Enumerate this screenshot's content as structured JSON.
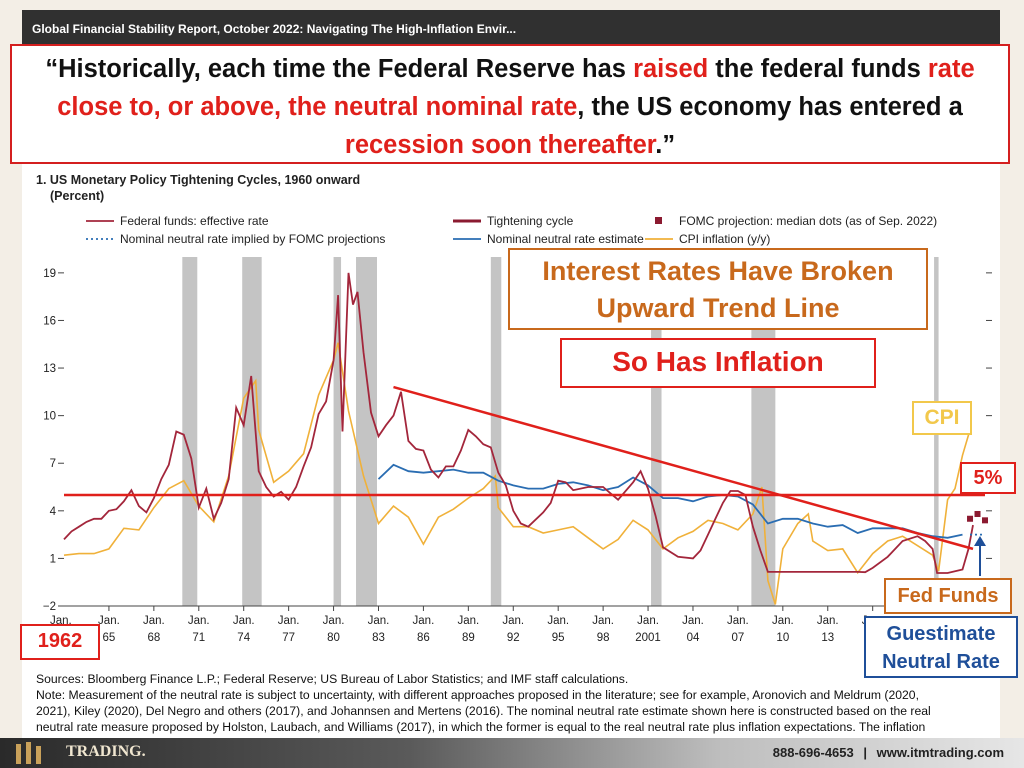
{
  "window_title": "Global Financial Stability Report, October 2022: Navigating The High-Inflation Envir...",
  "quote": {
    "p1": "“Historically, each time the Federal Reserve has ",
    "h1": "raised",
    "p2": " the federal funds ",
    "h2": "rate close to, or above, the neutral nominal rate",
    "p3": ", the US economy has entered a ",
    "h3": "recession soon thereafter",
    "p4": ".”"
  },
  "callouts": {
    "trend": "Interest Rates Have Broken Upward Trend Line",
    "inflation": "So Has Inflation",
    "cpi": "CPI",
    "five_pct": "5%",
    "fed_funds": "Fed Funds",
    "guestimate": "Guestimate Neutral Rate",
    "year_1962": "1962"
  },
  "notes": {
    "line1": "Sources: Bloomberg Finance L.P.; Federal Reserve; US Bureau of Labor Statistics; and IMF staff calculations.",
    "line2": "Note: Measurement of the neutral rate is subject to uncertainty, with different approaches proposed in the literature; see for example, Aronovich and Meldrum (2020,",
    "line3": "2021), Kiley (2020), Del Negro and others (2017), and Johannsen and Mertens (2016). The nominal neutral rate estimate shown here is constructed based on the real",
    "line4": "neutral rate measure proposed by Holston, Laubach, and Williams (2017), in which the former is equal to the real neutral rate plus inflation expectations. The inflation"
  },
  "footer": {
    "phone": "888-696-4653",
    "sep": "|",
    "website": "www.itmtrading.com",
    "logo_text": "TRADING."
  },
  "colors": {
    "fed_funds": "#a3263b",
    "tightening": "#8b1a30",
    "neutral_est": "#2a6db2",
    "neutral_fomc": "#2a6db2",
    "cpi": "#f0b13a",
    "fomc_dots": "#8b1a30",
    "recession": "#c4c4c4",
    "annotation_red": "#e0201b",
    "annotation_orange": "#c8691c",
    "annotation_blue": "#1f4f99",
    "annotation_yellow": "#f2c84b"
  },
  "chart_data": {
    "type": "line",
    "title": "1. US Monetary Policy Tightening Cycles, 1960 onward",
    "subtitle": "(Percent)",
    "ylim": [
      -2,
      20
    ],
    "yticks": [
      -2,
      1,
      4,
      7,
      10,
      13,
      16,
      19
    ],
    "xlim": [
      1962,
      2023.5
    ],
    "xticks": [
      {
        "top": "Jan.",
        "bottom": "65"
      },
      {
        "top": "Jan.",
        "bottom": "68"
      },
      {
        "top": "Jan.",
        "bottom": "71"
      },
      {
        "top": "Jan.",
        "bottom": "74"
      },
      {
        "top": "Jan.",
        "bottom": "77"
      },
      {
        "top": "Jan.",
        "bottom": "80"
      },
      {
        "top": "Jan.",
        "bottom": "83"
      },
      {
        "top": "Jan.",
        "bottom": "86"
      },
      {
        "top": "Jan.",
        "bottom": "89"
      },
      {
        "top": "Jan.",
        "bottom": "92"
      },
      {
        "top": "Jan.",
        "bottom": "95"
      },
      {
        "top": "Jan.",
        "bottom": "98"
      },
      {
        "top": "Jan.",
        "bottom": "2001"
      },
      {
        "top": "Jan.",
        "bottom": "04"
      },
      {
        "top": "Jan.",
        "bottom": "07"
      },
      {
        "top": "Jan.",
        "bottom": "10"
      },
      {
        "top": "Jan.",
        "bottom": "13"
      },
      {
        "top": "Jan.",
        "bottom": "16"
      }
    ],
    "xtick_years": [
      1965,
      1968,
      1971,
      1974,
      1977,
      1980,
      1983,
      1986,
      1989,
      1992,
      1995,
      1998,
      2001,
      2004,
      2007,
      2010,
      2013,
      2016
    ],
    "first_tick_label": "Jan.",
    "legend": [
      {
        "name": "Federal funds: effective rate",
        "style": "line",
        "color": "#a3263b"
      },
      {
        "name": "Tightening cycle",
        "style": "thick",
        "color": "#8b1a30"
      },
      {
        "name": "FOMC projection: median dots (as of Sep. 2022)",
        "style": "square",
        "color": "#8b1a30"
      },
      {
        "name": "Nominal neutral rate implied by FOMC projections",
        "style": "dotted",
        "color": "#2a6db2"
      },
      {
        "name": "Nominal neutral rate estimate",
        "style": "line",
        "color": "#2a6db2"
      },
      {
        "name": "CPI inflation (y/y)",
        "style": "line",
        "color": "#f0b13a"
      }
    ],
    "recessions": [
      [
        1969.9,
        1970.9
      ],
      [
        1973.9,
        1975.2
      ],
      [
        1980.0,
        1980.5
      ],
      [
        1981.5,
        1982.9
      ],
      [
        1990.5,
        1991.2
      ],
      [
        2001.2,
        2001.9
      ],
      [
        2007.9,
        2009.5
      ],
      [
        2020.1,
        2020.4
      ]
    ],
    "series": [
      {
        "name": "Federal funds: effective rate",
        "x": [
          1962,
          1962.5,
          1963,
          1963.5,
          1964,
          1964.5,
          1965,
          1965.5,
          1966,
          1966.5,
          1967,
          1967.5,
          1968,
          1968.5,
          1969,
          1969.5,
          1970,
          1970.5,
          1971,
          1971.5,
          1972,
          1972.5,
          1973,
          1973.5,
          1974,
          1974.5,
          1975,
          1975.5,
          1976,
          1976.5,
          1977,
          1977.5,
          1978,
          1978.5,
          1979,
          1979.5,
          1980,
          1980.3,
          1980.6,
          1981,
          1981.3,
          1981.6,
          1982,
          1982.5,
          1983,
          1983.5,
          1984,
          1984.5,
          1985,
          1985.5,
          1986,
          1986.5,
          1987,
          1987.5,
          1988,
          1988.5,
          1989,
          1989.5,
          1990,
          1990.5,
          1991,
          1991.5,
          1992,
          1992.5,
          1993,
          1994,
          1994.5,
          1995,
          1995.5,
          1996,
          1997,
          1998,
          1998.5,
          1999,
          2000,
          2000.5,
          2001,
          2001.5,
          2002,
          2003,
          2004,
          2004.5,
          2005,
          2005.5,
          2006,
          2006.5,
          2007,
          2007.5,
          2008,
          2008.5,
          2009,
          2012,
          2015,
          2015.5,
          2016,
          2017,
          2018,
          2019,
          2019.5,
          2020,
          2020.3,
          2021,
          2022,
          2022.4,
          2022.7
        ],
        "y": [
          2.2,
          2.7,
          3.0,
          3.3,
          3.5,
          3.5,
          4.0,
          4.1,
          4.6,
          5.3,
          4.3,
          3.9,
          4.8,
          6.0,
          6.9,
          9.0,
          8.8,
          7.3,
          4.2,
          5.4,
          3.5,
          4.5,
          6.0,
          10.5,
          9.4,
          12.5,
          6.5,
          5.5,
          4.9,
          5.2,
          4.7,
          5.5,
          6.8,
          8.0,
          10.1,
          10.9,
          13.5,
          17.6,
          9.0,
          19.0,
          17.0,
          17.8,
          14.0,
          10.2,
          8.7,
          9.4,
          10.0,
          11.5,
          8.4,
          7.9,
          7.8,
          6.6,
          6.1,
          6.8,
          6.8,
          7.8,
          9.1,
          8.7,
          8.2,
          8.0,
          6.4,
          5.6,
          4.0,
          3.2,
          3.0,
          3.9,
          4.5,
          5.9,
          5.8,
          5.3,
          5.5,
          5.5,
          5.1,
          4.7,
          5.8,
          6.5,
          5.4,
          3.7,
          1.7,
          1.1,
          1.0,
          1.5,
          2.5,
          3.5,
          4.5,
          5.25,
          5.25,
          5.0,
          3.0,
          1.5,
          0.15,
          0.15,
          0.15,
          0.13,
          0.4,
          1.1,
          2.1,
          2.4,
          2.1,
          1.6,
          0.08,
          0.08,
          0.3,
          1.6,
          3.1
        ]
      },
      {
        "name": "CPI inflation (y/y)",
        "x": [
          1962,
          1963,
          1964,
          1965,
          1966,
          1967,
          1968,
          1969,
          1970,
          1971,
          1972,
          1973,
          1974,
          1974.8,
          1975,
          1976,
          1977,
          1978,
          1979,
          1980,
          1980.3,
          1981,
          1982,
          1983,
          1984,
          1985,
          1986,
          1987,
          1988,
          1989,
          1990,
          1990.8,
          1991,
          1992,
          1993,
          1994,
          1995,
          1996,
          1997,
          1998,
          1999,
          2000,
          2001,
          2002,
          2003,
          2004,
          2005,
          2006,
          2007,
          2008,
          2008.6,
          2009,
          2009.5,
          2010,
          2011,
          2011.7,
          2012,
          2013,
          2014,
          2015,
          2016,
          2017,
          2018,
          2019,
          2020,
          2020.4,
          2021,
          2021.5,
          2022,
          2022.5
        ],
        "y": [
          1.2,
          1.3,
          1.3,
          1.6,
          2.9,
          2.8,
          4.2,
          5.4,
          5.9,
          4.3,
          3.3,
          6.2,
          11.1,
          12.2,
          9.1,
          5.8,
          6.5,
          7.6,
          11.3,
          13.5,
          14.6,
          10.3,
          6.2,
          3.2,
          4.3,
          3.6,
          1.9,
          3.6,
          4.1,
          4.8,
          5.4,
          6.2,
          4.2,
          3.0,
          3.0,
          2.6,
          2.8,
          3.0,
          2.3,
          1.6,
          2.2,
          3.4,
          2.8,
          1.6,
          2.3,
          2.7,
          3.4,
          3.2,
          2.8,
          3.8,
          5.5,
          -0.4,
          -1.9,
          1.6,
          3.2,
          3.8,
          2.1,
          1.5,
          1.6,
          0.1,
          1.3,
          2.1,
          2.4,
          1.8,
          1.2,
          0.2,
          4.7,
          5.4,
          7.5,
          9.1
        ]
      },
      {
        "name": "Nominal neutral rate estimate",
        "x": [
          1983,
          1984,
          1985,
          1986,
          1987,
          1988,
          1989,
          1990,
          1991,
          1992,
          1993,
          1994,
          1995,
          1996,
          1997,
          1998,
          1999,
          2000,
          2001,
          2002,
          2003,
          2004,
          2005,
          2006,
          2007,
          2008,
          2009,
          2010,
          2011,
          2012,
          2013,
          2014,
          2015,
          2016,
          2017,
          2018,
          2019,
          2020,
          2021,
          2022
        ],
        "y": [
          6.0,
          6.9,
          6.5,
          6.4,
          6.5,
          6.6,
          6.4,
          6.4,
          5.9,
          5.6,
          5.4,
          5.4,
          5.7,
          5.8,
          5.6,
          5.3,
          5.5,
          6.1,
          5.6,
          4.8,
          4.8,
          4.6,
          4.9,
          5.0,
          4.9,
          4.4,
          3.2,
          3.5,
          3.5,
          3.2,
          3.0,
          3.1,
          2.6,
          2.9,
          2.9,
          2.9,
          2.6,
          2.4,
          2.3,
          2.5
        ]
      },
      {
        "name": "Nominal neutral rate implied by FOMC projections",
        "x": [
          2022.5,
          2023.5
        ],
        "y": [
          2.5,
          2.5
        ]
      },
      {
        "name": "FOMC projection: median dots (as of Sep. 2022)",
        "x": [
          2022.5,
          2023,
          2023.5
        ],
        "y": [
          3.5,
          3.8,
          3.4
        ]
      }
    ],
    "annotation_lines": [
      {
        "name": "downtrend",
        "x": [
          1984,
          2022.7
        ],
        "y": [
          11.8,
          1.6
        ]
      },
      {
        "name": "five-percent-line",
        "x": [
          1962,
          2023.5
        ],
        "y": [
          5,
          5
        ]
      }
    ]
  }
}
